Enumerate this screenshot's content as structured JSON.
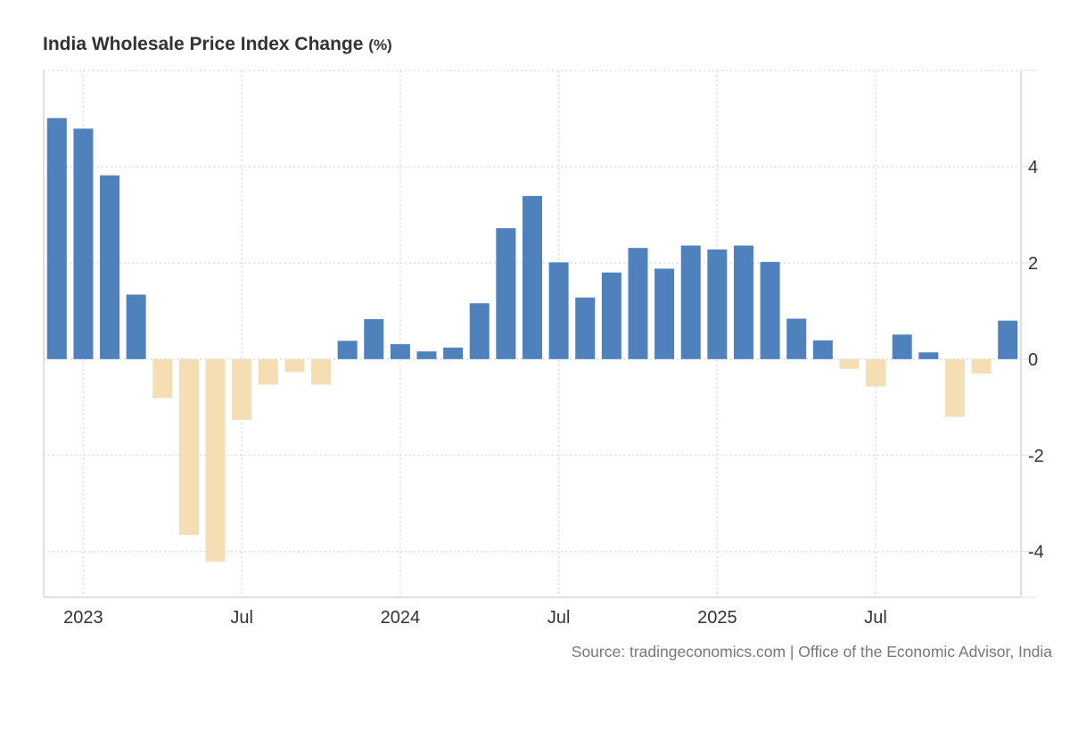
{
  "chart_data": {
    "type": "bar",
    "title": "India Wholesale Price Index Change",
    "title_unit": "(%)",
    "xlabel": "",
    "ylabel": "",
    "categories": [
      "Dec 2022",
      "Jan 2023",
      "Feb 2023",
      "Mar 2023",
      "Apr 2023",
      "May 2023",
      "Jun 2023",
      "Jul 2023",
      "Aug 2023",
      "Sep 2023",
      "Oct 2023",
      "Nov 2023",
      "Dec 2023",
      "Jan 2024",
      "Feb 2024",
      "Mar 2024",
      "Apr 2024",
      "May 2024",
      "Jun 2024",
      "Jul 2024",
      "Aug 2024",
      "Sep 2024",
      "Oct 2024",
      "Nov 2024",
      "Dec 2024",
      "Jan 2025",
      "Feb 2025",
      "Mar 2025",
      "Apr 2025",
      "May 2025",
      "Jun 2025",
      "Jul 2025",
      "Aug 2025",
      "Sep 2025",
      "Oct 2025",
      "Nov 2025",
      "Dec 2025"
    ],
    "values": [
      5.01,
      4.79,
      3.82,
      1.34,
      -0.81,
      -3.65,
      -4.21,
      -1.26,
      -0.53,
      -0.27,
      -0.53,
      0.38,
      0.83,
      0.31,
      0.16,
      0.24,
      1.16,
      2.72,
      3.39,
      2.01,
      1.28,
      1.8,
      2.31,
      1.88,
      2.36,
      2.28,
      2.36,
      2.02,
      0.84,
      0.39,
      -0.2,
      -0.57,
      0.51,
      0.14,
      -1.2,
      -0.3,
      0.8
    ],
    "ylim": [
      -4.95,
      6
    ],
    "yticks": [
      4,
      2,
      0,
      -2,
      -4
    ],
    "ytick_labels": [
      "4",
      "2",
      "0",
      "-2",
      "-4"
    ],
    "yaxis_side": "right",
    "xticks": [
      {
        "category_index": 1,
        "label": "2023"
      },
      {
        "category_index": 7,
        "label": "Jul"
      },
      {
        "category_index": 13,
        "label": "2024"
      },
      {
        "category_index": 19,
        "label": "Jul"
      },
      {
        "category_index": 25,
        "label": "2025"
      },
      {
        "category_index": 31,
        "label": "Jul"
      }
    ],
    "grid": true,
    "legend": "none",
    "colors": {
      "positive": "#4f81bd",
      "negative": "#f5deb3",
      "grid": "#dddddd",
      "axis": "#e0e0e0",
      "text": "#333333"
    }
  },
  "source": "Source: tradingeconomics.com | Office of the Economic Advisor, India"
}
